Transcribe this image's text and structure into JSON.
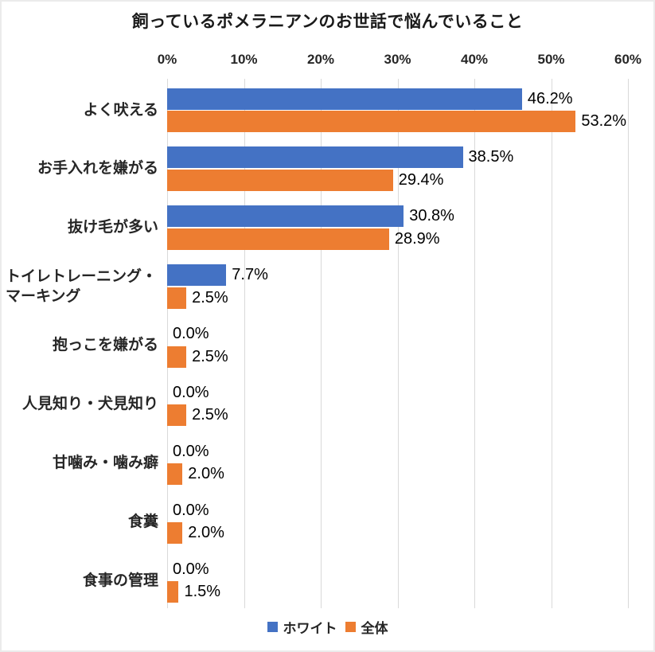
{
  "chart_data": {
    "type": "bar",
    "orientation": "horizontal",
    "title": "飼っているポメラニアンのお世話で悩んでいること",
    "categories": [
      {
        "lines": [
          "よく吠える"
        ]
      },
      {
        "lines": [
          "お手入れを嫌がる"
        ]
      },
      {
        "lines": [
          "抜け毛が多い"
        ]
      },
      {
        "lines": [
          "トイレトレーニング・",
          "マーキング"
        ]
      },
      {
        "lines": [
          "抱っこを嫌がる"
        ]
      },
      {
        "lines": [
          "人見知り・犬見知り"
        ]
      },
      {
        "lines": [
          "甘噛み・噛み癖"
        ]
      },
      {
        "lines": [
          "食糞"
        ]
      },
      {
        "lines": [
          "食事の管理"
        ]
      }
    ],
    "series": [
      {
        "name": "ホワイト",
        "color": "#4472C4",
        "values": [
          46.2,
          38.5,
          30.8,
          7.7,
          0.0,
          0.0,
          0.0,
          0.0,
          0.0
        ],
        "labels": [
          "46.2%",
          "38.5%",
          "30.8%",
          "7.7%",
          "0.0%",
          "0.0%",
          "0.0%",
          "0.0%",
          "0.0%"
        ]
      },
      {
        "name": "全体",
        "color": "#ED7D31",
        "values": [
          53.2,
          29.4,
          28.9,
          2.5,
          2.5,
          2.5,
          2.0,
          2.0,
          1.5
        ],
        "labels": [
          "53.2%",
          "29.4%",
          "28.9%",
          "2.5%",
          "2.5%",
          "2.5%",
          "2.0%",
          "2.0%",
          "1.5%"
        ]
      }
    ],
    "x_axis": {
      "min": 0,
      "max": 60,
      "tick_labels": [
        "0%",
        "10%",
        "20%",
        "30%",
        "40%",
        "50%",
        "60%"
      ]
    },
    "legend": {
      "position": "bottom",
      "entries": [
        "ホワイト",
        "全体"
      ]
    },
    "grid": true,
    "gridline_color": "#D9D9D9",
    "text_color": "#262626"
  }
}
